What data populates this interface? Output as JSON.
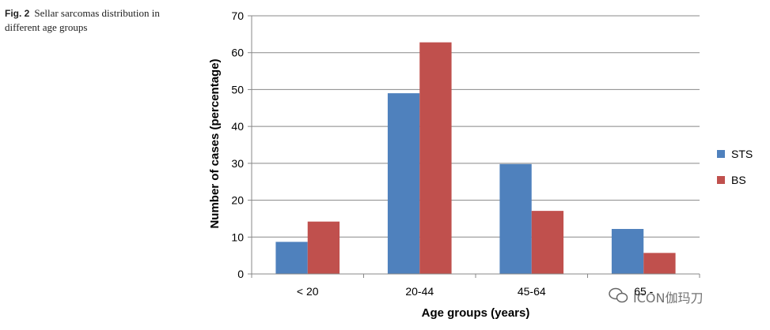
{
  "caption": {
    "label": "Fig. 2",
    "text": "Sellar sarcomas distribution in different age groups"
  },
  "watermark": {
    "text": "ICON伽玛刀",
    "icon": "wechat-icon"
  },
  "chart_data": {
    "type": "bar",
    "title": "",
    "xlabel": "Age groups (years)",
    "ylabel": "Number of cases (percentage)",
    "ylim": [
      0,
      70
    ],
    "yticks": [
      0,
      10,
      20,
      30,
      40,
      50,
      60,
      70
    ],
    "grid": true,
    "legend": "right",
    "categories": [
      "< 20",
      "20-44",
      "45-64",
      "65 -"
    ],
    "series": [
      {
        "name": "STS",
        "values": [
          8.7,
          49.0,
          29.8,
          12.2
        ],
        "color": "#4F81BD"
      },
      {
        "name": "BS",
        "values": [
          14.2,
          62.8,
          17.1,
          5.7
        ],
        "color": "#C0504D"
      }
    ]
  }
}
